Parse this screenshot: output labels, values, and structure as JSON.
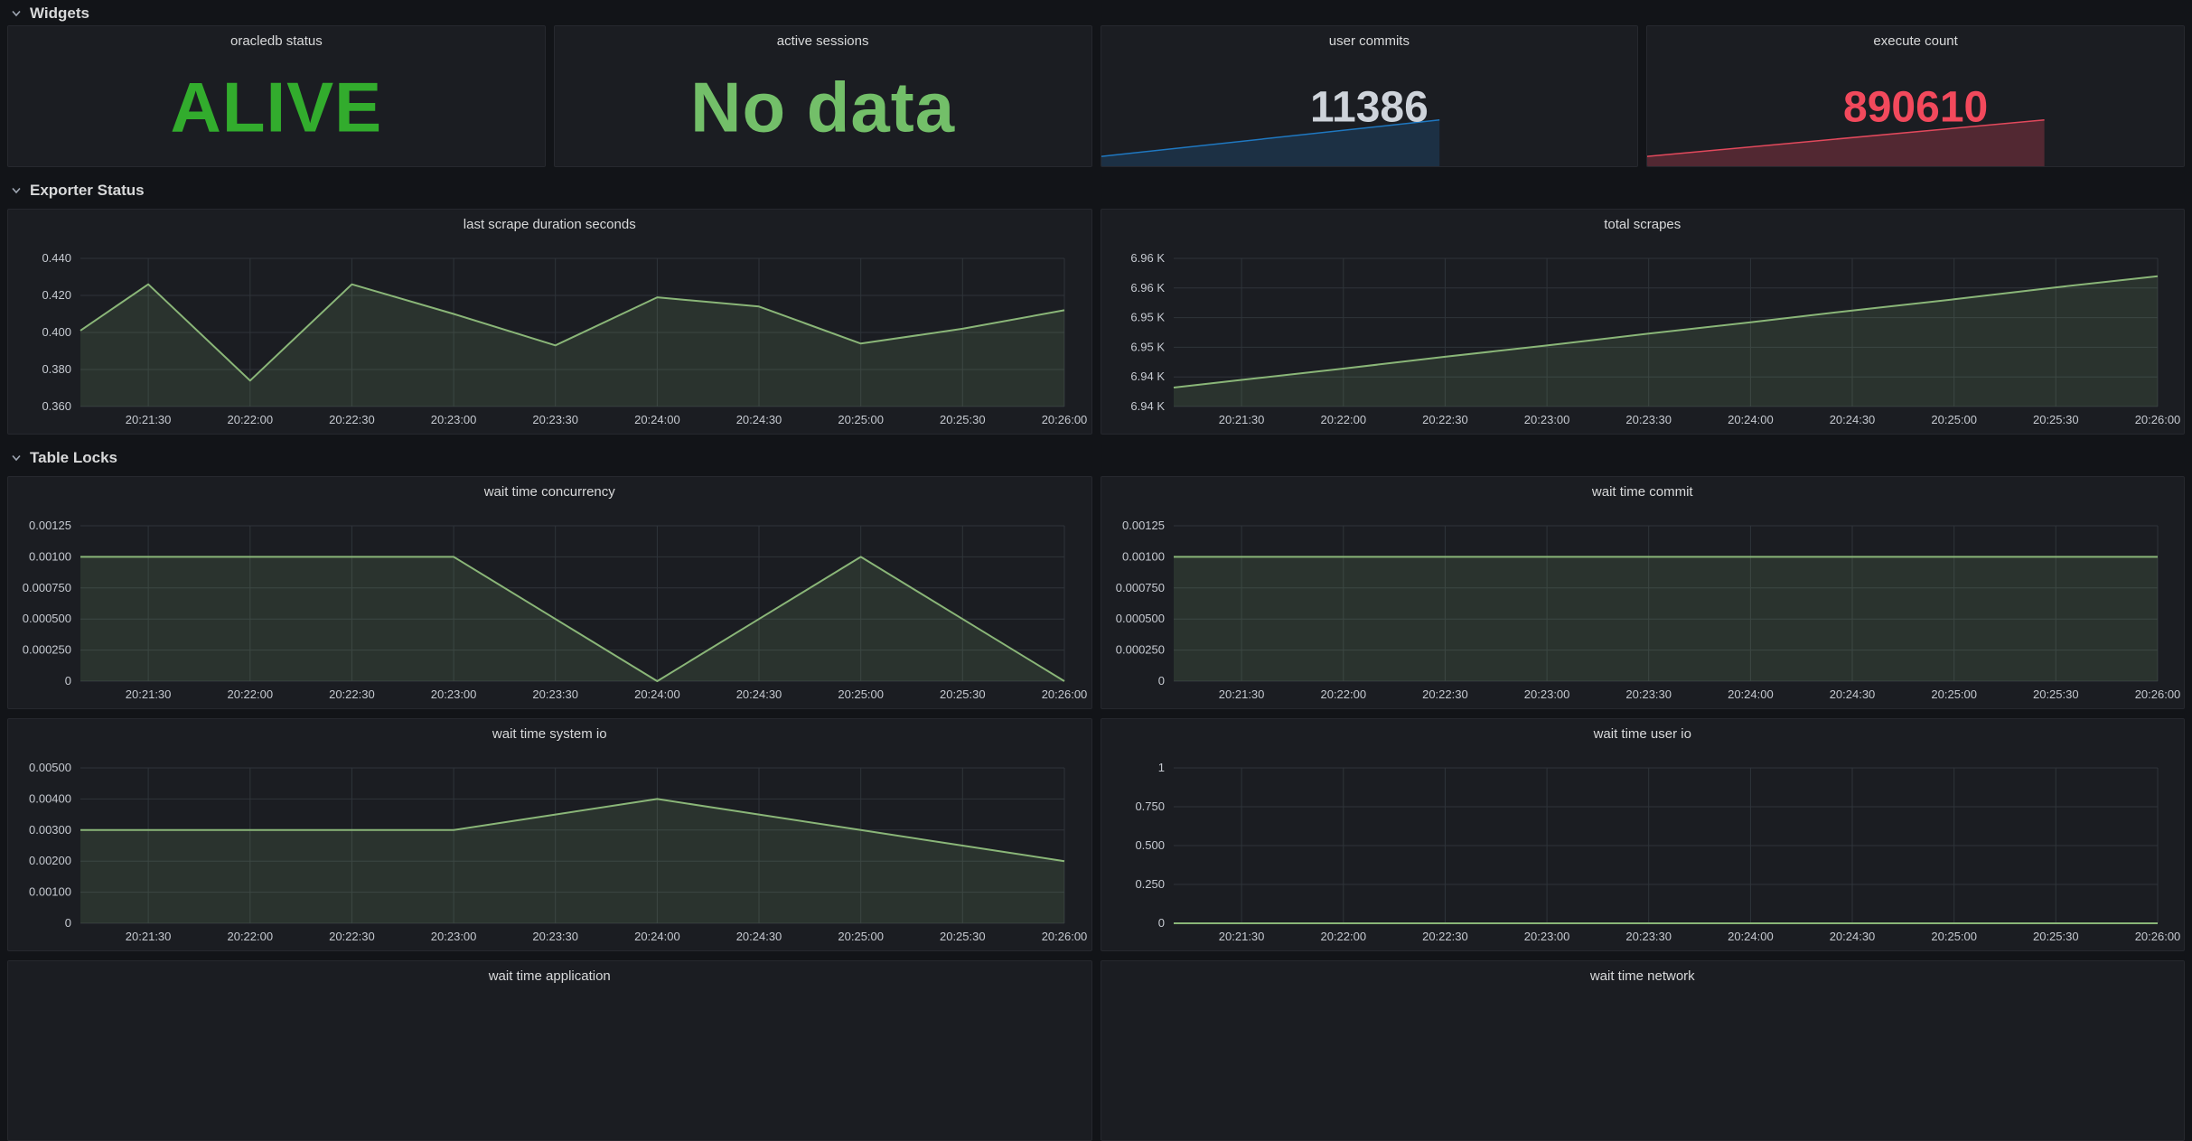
{
  "colors": {
    "page_bg": "#121418",
    "panel_bg": "#1b1d22",
    "panel_border": "#26282e",
    "title_text": "#d8d9da",
    "axis_text": "#c6cad1",
    "grid": "#2f343a",
    "green_line": "#8ab678",
    "green_fill": "rgba(134,182,120,0.15)",
    "stat_green": "#32ac2d",
    "stat_soft_green": "#73bf69",
    "stat_gray": "#ced3da",
    "stat_red": "#f2495c",
    "blue_line": "#1f78c1",
    "blue_fill": "rgba(31,120,193,0.22)",
    "red_line": "#e2495c",
    "red_fill": "rgba(226,73,92,0.28)",
    "chevron": "#9fa7b3"
  },
  "dashboard": {
    "sections": [
      {
        "title": "Widgets",
        "panels": [
          {
            "kind": "stat",
            "title": "oracledb status",
            "value": "ALIVE"
          },
          {
            "kind": "stat",
            "title": "active sessions",
            "value": "No data"
          },
          {
            "kind": "stat",
            "title": "user commits",
            "value": "11386",
            "spark": 8
          },
          {
            "kind": "stat",
            "title": "execute count",
            "value": "890610",
            "spark": 9
          }
        ]
      },
      {
        "title": "Exporter Status",
        "panels": [
          {
            "kind": "graph",
            "title": "last scrape duration seconds",
            "chart": 0
          },
          {
            "kind": "graph",
            "title": "total scrapes",
            "chart": 1
          }
        ]
      },
      {
        "title": "Table Locks",
        "panels": [
          {
            "kind": "graph",
            "title": "wait time concurrency",
            "chart": 2
          },
          {
            "kind": "graph",
            "title": "wait time commit",
            "chart": 3
          },
          {
            "kind": "graph",
            "title": "wait time system io",
            "chart": 4
          },
          {
            "kind": "graph",
            "title": "wait time user io",
            "chart": 5
          },
          {
            "kind": "graph",
            "title": "wait time application",
            "chart": 6
          },
          {
            "kind": "graph",
            "title": "wait time network",
            "chart": 7
          }
        ]
      }
    ]
  },
  "chart_data": [
    {
      "type": "area",
      "title": "last scrape duration seconds",
      "xlabel": "",
      "ylabel": "",
      "grid": true,
      "legend": false,
      "ylim": [
        0.36,
        0.44
      ],
      "y_ticks": [
        {
          "v": 0.36,
          "label": "0.360"
        },
        {
          "v": 0.38,
          "label": "0.380"
        },
        {
          "v": 0.4,
          "label": "0.400"
        },
        {
          "v": 0.42,
          "label": "0.420"
        },
        {
          "v": 0.44,
          "label": "0.440"
        }
      ],
      "x_range": [
        "20:21:10",
        "20:26:00"
      ],
      "x_ticks": [
        "20:21:30",
        "20:22:00",
        "20:22:30",
        "20:23:00",
        "20:23:30",
        "20:24:00",
        "20:24:30",
        "20:25:00",
        "20:25:30",
        "20:26:00"
      ],
      "series": [
        {
          "color": "#8ab678",
          "fill": "rgba(134,182,120,0.15)",
          "points": [
            [
              "20:21:10",
              0.401
            ],
            [
              "20:21:30",
              0.426
            ],
            [
              "20:22:00",
              0.374
            ],
            [
              "20:22:30",
              0.426
            ],
            [
              "20:23:00",
              0.41
            ],
            [
              "20:23:30",
              0.393
            ],
            [
              "20:24:00",
              0.419
            ],
            [
              "20:24:30",
              0.414
            ],
            [
              "20:25:00",
              0.394
            ],
            [
              "20:25:30",
              0.402
            ],
            [
              "20:26:00",
              0.412
            ]
          ]
        }
      ]
    },
    {
      "type": "area",
      "title": "total scrapes",
      "xlabel": "",
      "ylabel": "",
      "grid": true,
      "legend": false,
      "ylim": [
        6935,
        6960
      ],
      "y_ticks": [
        {
          "v": 6935,
          "label": "6.94 K"
        },
        {
          "v": 6940,
          "label": "6.94 K"
        },
        {
          "v": 6945,
          "label": "6.95 K"
        },
        {
          "v": 6950,
          "label": "6.95 K"
        },
        {
          "v": 6955,
          "label": "6.96 K"
        },
        {
          "v": 6960,
          "label": "6.96 K"
        }
      ],
      "x_range": [
        "20:21:10",
        "20:26:00"
      ],
      "x_ticks": [
        "20:21:30",
        "20:22:00",
        "20:22:30",
        "20:23:00",
        "20:23:30",
        "20:24:00",
        "20:24:30",
        "20:25:00",
        "20:25:30",
        "20:26:00"
      ],
      "series": [
        {
          "color": "#8ab678",
          "fill": "rgba(134,182,120,0.15)",
          "points": [
            [
              "20:21:10",
              6938.2
            ],
            [
              "20:21:30",
              6939.5
            ],
            [
              "20:22:00",
              6941.4
            ],
            [
              "20:22:30",
              6943.4
            ],
            [
              "20:23:00",
              6945.3
            ],
            [
              "20:23:30",
              6947.3
            ],
            [
              "20:24:00",
              6949.2
            ],
            [
              "20:24:30",
              6951.2
            ],
            [
              "20:25:00",
              6953.1
            ],
            [
              "20:25:30",
              6955.1
            ],
            [
              "20:26:00",
              6957.0
            ]
          ]
        }
      ]
    },
    {
      "type": "area",
      "title": "wait time concurrency",
      "xlabel": "",
      "ylabel": "",
      "grid": true,
      "legend": false,
      "ylim": [
        0,
        0.00125
      ],
      "y_ticks": [
        {
          "v": 0,
          "label": "0"
        },
        {
          "v": 0.00025,
          "label": "0.000250"
        },
        {
          "v": 0.0005,
          "label": "0.000500"
        },
        {
          "v": 0.00075,
          "label": "0.000750"
        },
        {
          "v": 0.001,
          "label": "0.00100"
        },
        {
          "v": 0.00125,
          "label": "0.00125"
        }
      ],
      "x_range": [
        "20:21:10",
        "20:26:00"
      ],
      "x_ticks": [
        "20:21:30",
        "20:22:00",
        "20:22:30",
        "20:23:00",
        "20:23:30",
        "20:24:00",
        "20:24:30",
        "20:25:00",
        "20:25:30",
        "20:26:00"
      ],
      "series": [
        {
          "color": "#8ab678",
          "fill": "rgba(134,182,120,0.15)",
          "points": [
            [
              "20:21:10",
              0.001
            ],
            [
              "20:21:30",
              0.001
            ],
            [
              "20:22:00",
              0.001
            ],
            [
              "20:22:30",
              0.001
            ],
            [
              "20:23:00",
              0.001
            ],
            [
              "20:23:30",
              0.0005
            ],
            [
              "20:24:00",
              0
            ],
            [
              "20:24:30",
              0.0005
            ],
            [
              "20:25:00",
              0.001
            ],
            [
              "20:25:30",
              0.0005
            ],
            [
              "20:26:00",
              0
            ]
          ]
        }
      ]
    },
    {
      "type": "area",
      "title": "wait time commit",
      "xlabel": "",
      "ylabel": "",
      "grid": true,
      "legend": false,
      "ylim": [
        0,
        0.00125
      ],
      "y_ticks": [
        {
          "v": 0,
          "label": "0"
        },
        {
          "v": 0.00025,
          "label": "0.000250"
        },
        {
          "v": 0.0005,
          "label": "0.000500"
        },
        {
          "v": 0.00075,
          "label": "0.000750"
        },
        {
          "v": 0.001,
          "label": "0.00100"
        },
        {
          "v": 0.00125,
          "label": "0.00125"
        }
      ],
      "x_range": [
        "20:21:10",
        "20:26:00"
      ],
      "x_ticks": [
        "20:21:30",
        "20:22:00",
        "20:22:30",
        "20:23:00",
        "20:23:30",
        "20:24:00",
        "20:24:30",
        "20:25:00",
        "20:25:30",
        "20:26:00"
      ],
      "series": [
        {
          "color": "#8ab678",
          "fill": "rgba(134,182,120,0.15)",
          "points": [
            [
              "20:21:10",
              0.001
            ],
            [
              "20:21:30",
              0.001
            ],
            [
              "20:22:00",
              0.001
            ],
            [
              "20:22:30",
              0.001
            ],
            [
              "20:23:00",
              0.001
            ],
            [
              "20:23:30",
              0.001
            ],
            [
              "20:24:00",
              0.001
            ],
            [
              "20:24:30",
              0.001
            ],
            [
              "20:25:00",
              0.001
            ],
            [
              "20:25:30",
              0.001
            ],
            [
              "20:26:00",
              0.001
            ]
          ]
        }
      ]
    },
    {
      "type": "area",
      "title": "wait time system io",
      "xlabel": "",
      "ylabel": "",
      "grid": true,
      "legend": false,
      "ylim": [
        0,
        0.005
      ],
      "y_ticks": [
        {
          "v": 0,
          "label": "0"
        },
        {
          "v": 0.001,
          "label": "0.00100"
        },
        {
          "v": 0.002,
          "label": "0.00200"
        },
        {
          "v": 0.003,
          "label": "0.00300"
        },
        {
          "v": 0.004,
          "label": "0.00400"
        },
        {
          "v": 0.005,
          "label": "0.00500"
        }
      ],
      "x_range": [
        "20:21:10",
        "20:26:00"
      ],
      "x_ticks": [
        "20:21:30",
        "20:22:00",
        "20:22:30",
        "20:23:00",
        "20:23:30",
        "20:24:00",
        "20:24:30",
        "20:25:00",
        "20:25:30",
        "20:26:00"
      ],
      "series": [
        {
          "color": "#8ab678",
          "fill": "rgba(134,182,120,0.15)",
          "points": [
            [
              "20:21:10",
              0.003
            ],
            [
              "20:21:30",
              0.003
            ],
            [
              "20:22:00",
              0.003
            ],
            [
              "20:22:30",
              0.003
            ],
            [
              "20:23:00",
              0.003
            ],
            [
              "20:23:30",
              0.0035
            ],
            [
              "20:24:00",
              0.004
            ],
            [
              "20:24:30",
              0.0035
            ],
            [
              "20:25:00",
              0.003
            ],
            [
              "20:25:30",
              0.0025
            ],
            [
              "20:26:00",
              0.002
            ]
          ]
        }
      ]
    },
    {
      "type": "area",
      "title": "wait time user io",
      "xlabel": "",
      "ylabel": "",
      "grid": true,
      "legend": false,
      "ylim": [
        0,
        1
      ],
      "y_ticks": [
        {
          "v": 0,
          "label": "0"
        },
        {
          "v": 0.25,
          "label": "0.250"
        },
        {
          "v": 0.5,
          "label": "0.500"
        },
        {
          "v": 0.75,
          "label": "0.750"
        },
        {
          "v": 1,
          "label": "1"
        }
      ],
      "x_range": [
        "20:21:10",
        "20:26:00"
      ],
      "x_ticks": [
        "20:21:30",
        "20:22:00",
        "20:22:30",
        "20:23:00",
        "20:23:30",
        "20:24:00",
        "20:24:30",
        "20:25:00",
        "20:25:30",
        "20:26:00"
      ],
      "series": [
        {
          "color": "#8ab678",
          "fill": "rgba(134,182,120,0.15)",
          "points": [
            [
              "20:21:10",
              0
            ],
            [
              "20:21:30",
              0
            ],
            [
              "20:22:00",
              0
            ],
            [
              "20:22:30",
              0
            ],
            [
              "20:23:00",
              0
            ],
            [
              "20:23:30",
              0
            ],
            [
              "20:24:00",
              0
            ],
            [
              "20:24:30",
              0
            ],
            [
              "20:25:00",
              0
            ],
            [
              "20:25:30",
              0
            ],
            [
              "20:26:00",
              0
            ]
          ]
        }
      ]
    },
    {
      "type": "area",
      "title": "wait time application"
    },
    {
      "type": "area",
      "title": "wait time network"
    },
    {
      "type": "area",
      "title": "user commits",
      "current_value": 11386,
      "line_color": "#1f78c1",
      "fill_color": "rgba(31,120,193,0.22)",
      "points_frac": [
        [
          0,
          0.07
        ],
        [
          0.63,
          0.33
        ]
      ]
    },
    {
      "type": "area",
      "title": "execute count",
      "current_value": 890610,
      "line_color": "#e2495c",
      "fill_color": "rgba(226,73,92,0.28)",
      "points_frac": [
        [
          0,
          0.07
        ],
        [
          0.74,
          0.33
        ]
      ]
    }
  ]
}
